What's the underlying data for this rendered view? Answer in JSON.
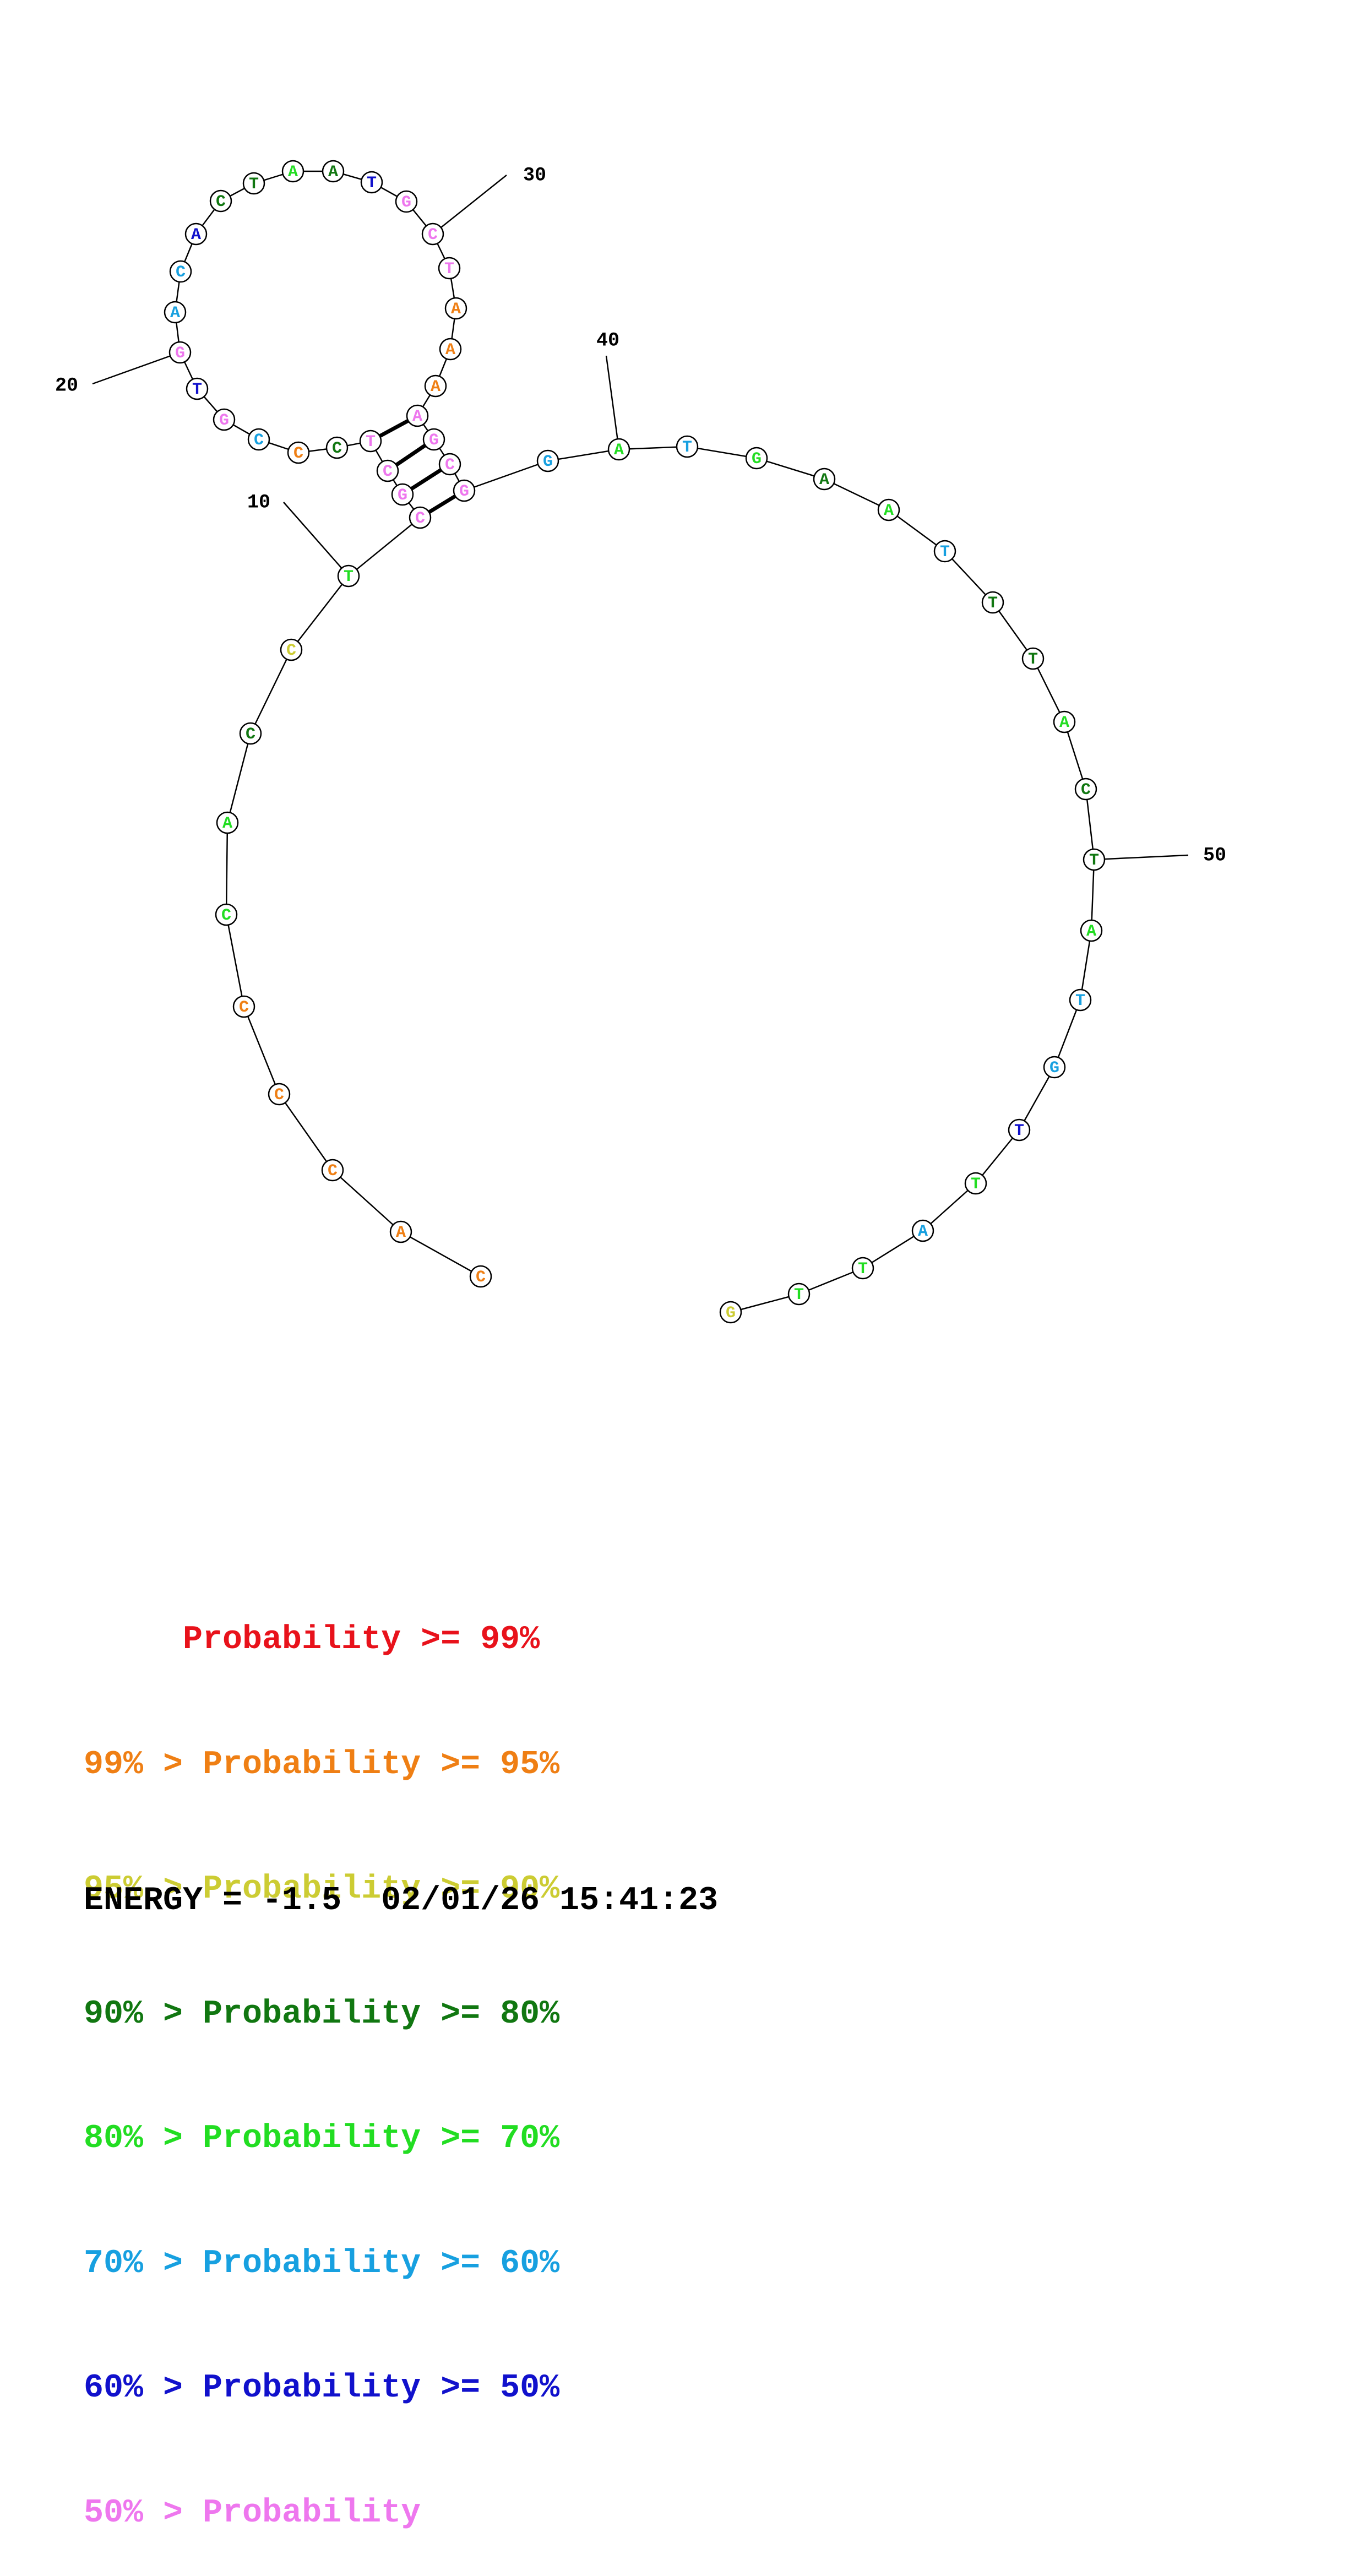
{
  "colors": {
    "p99": "#e8121b",
    "p95": "#ef7f14",
    "p90": "#cccc33",
    "p80": "#117711",
    "p70": "#22dd22",
    "p60": "#17a0e0",
    "p50": "#1111cc",
    "plt50": "#ee77ee"
  },
  "sequence": [
    {
      "n": 1,
      "base": "C",
      "c": "p95"
    },
    {
      "n": 2,
      "base": "A",
      "c": "p95"
    },
    {
      "n": 3,
      "base": "C",
      "c": "p95"
    },
    {
      "n": 4,
      "base": "C",
      "c": "p95"
    },
    {
      "n": 5,
      "base": "C",
      "c": "p95"
    },
    {
      "n": 6,
      "base": "C",
      "c": "p70"
    },
    {
      "n": 7,
      "base": "A",
      "c": "p70"
    },
    {
      "n": 8,
      "base": "C",
      "c": "p80"
    },
    {
      "n": 9,
      "base": "C",
      "c": "p90"
    },
    {
      "n": 10,
      "base": "T",
      "c": "p70"
    },
    {
      "n": 11,
      "base": "C",
      "c": "plt50"
    },
    {
      "n": 12,
      "base": "G",
      "c": "plt50"
    },
    {
      "n": 13,
      "base": "C",
      "c": "plt50"
    },
    {
      "n": 14,
      "base": "T",
      "c": "plt50"
    },
    {
      "n": 15,
      "base": "C",
      "c": "p80"
    },
    {
      "n": 16,
      "base": "C",
      "c": "p95"
    },
    {
      "n": 17,
      "base": "C",
      "c": "p60"
    },
    {
      "n": 18,
      "base": "G",
      "c": "plt50"
    },
    {
      "n": 19,
      "base": "T",
      "c": "p50"
    },
    {
      "n": 20,
      "base": "G",
      "c": "plt50"
    },
    {
      "n": 21,
      "base": "A",
      "c": "p60"
    },
    {
      "n": 22,
      "base": "C",
      "c": "p60"
    },
    {
      "n": 23,
      "base": "A",
      "c": "p50"
    },
    {
      "n": 24,
      "base": "C",
      "c": "p80"
    },
    {
      "n": 25,
      "base": "T",
      "c": "p80"
    },
    {
      "n": 26,
      "base": "A",
      "c": "p70"
    },
    {
      "n": 27,
      "base": "A",
      "c": "p80"
    },
    {
      "n": 28,
      "base": "T",
      "c": "p50"
    },
    {
      "n": 29,
      "base": "G",
      "c": "plt50"
    },
    {
      "n": 30,
      "base": "C",
      "c": "plt50"
    },
    {
      "n": 31,
      "base": "T",
      "c": "plt50"
    },
    {
      "n": 32,
      "base": "A",
      "c": "p95"
    },
    {
      "n": 33,
      "base": "A",
      "c": "p95"
    },
    {
      "n": 34,
      "base": "A",
      "c": "p95"
    },
    {
      "n": 35,
      "base": "A",
      "c": "plt50"
    },
    {
      "n": 36,
      "base": "G",
      "c": "plt50"
    },
    {
      "n": 37,
      "base": "C",
      "c": "plt50"
    },
    {
      "n": 38,
      "base": "G",
      "c": "plt50"
    },
    {
      "n": 39,
      "base": "G",
      "c": "p60"
    },
    {
      "n": 40,
      "base": "A",
      "c": "p70"
    },
    {
      "n": 41,
      "base": "T",
      "c": "p60"
    },
    {
      "n": 42,
      "base": "G",
      "c": "p70"
    },
    {
      "n": 43,
      "base": "A",
      "c": "p80"
    },
    {
      "n": 44,
      "base": "A",
      "c": "p70"
    },
    {
      "n": 45,
      "base": "T",
      "c": "p60"
    },
    {
      "n": 46,
      "base": "T",
      "c": "p80"
    },
    {
      "n": 47,
      "base": "T",
      "c": "p80"
    },
    {
      "n": 48,
      "base": "A",
      "c": "p70"
    },
    {
      "n": 49,
      "base": "C",
      "c": "p80"
    },
    {
      "n": 50,
      "base": "T",
      "c": "p80"
    },
    {
      "n": 51,
      "base": "A",
      "c": "p70"
    },
    {
      "n": 52,
      "base": "T",
      "c": "p60"
    },
    {
      "n": 53,
      "base": "G",
      "c": "p60"
    },
    {
      "n": 54,
      "base": "T",
      "c": "p50"
    },
    {
      "n": 55,
      "base": "T",
      "c": "p70"
    },
    {
      "n": 56,
      "base": "A",
      "c": "p60"
    },
    {
      "n": 57,
      "base": "T",
      "c": "p70"
    },
    {
      "n": 58,
      "base": "T",
      "c": "p70"
    },
    {
      "n": 59,
      "base": "G",
      "c": "p90"
    }
  ],
  "pairs": [
    [
      11,
      38
    ],
    [
      12,
      37
    ],
    [
      13,
      36
    ],
    [
      14,
      35
    ]
  ],
  "position_labels": [
    {
      "n": 10,
      "label": "10"
    },
    {
      "n": 20,
      "label": "20"
    },
    {
      "n": 30,
      "label": "30"
    },
    {
      "n": 40,
      "label": "40"
    },
    {
      "n": 50,
      "label": "50"
    }
  ],
  "legend": [
    {
      "text": "     Probability >= 99%",
      "c": "p99"
    },
    {
      "text": "99% > Probability >= 95%",
      "c": "p95"
    },
    {
      "text": "95% > Probability >= 90%",
      "c": "p90"
    },
    {
      "text": "90% > Probability >= 80%",
      "c": "p80"
    },
    {
      "text": "80% > Probability >= 70%",
      "c": "p70"
    },
    {
      "text": "70% > Probability >= 60%",
      "c": "p60"
    },
    {
      "text": "60% > Probability >= 50%",
      "c": "p50"
    },
    {
      "text": "50% > Probability",
      "c": "plt50"
    }
  ],
  "energy": "ENERGY = -1.5  02/01/26 15:41:23"
}
